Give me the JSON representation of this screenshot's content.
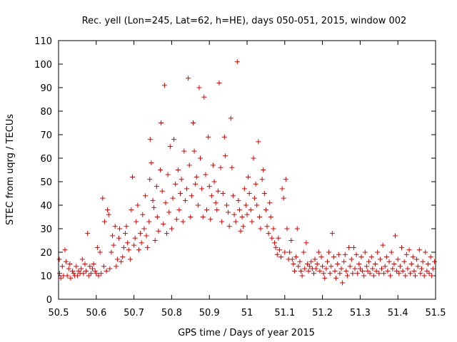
{
  "chart_data": {
    "type": "scatter",
    "title": "Rec. yell (Lon=245, Lat=62, h=HE), days 050-051, 2015, window 002",
    "xlabel": "GPS time / Days of year 2015",
    "ylabel": "STEC from uqrg / TECUs",
    "xlim": [
      50.5,
      51.5
    ],
    "ylim": [
      0,
      110
    ],
    "x_ticks": [
      "50.5",
      "50.6",
      "50.7",
      "50.8",
      "50.9",
      "51",
      "51.1",
      "51.2",
      "51.3",
      "51.4",
      "51.5"
    ],
    "y_ticks": [
      "0",
      "10",
      "20",
      "30",
      "40",
      "50",
      "60",
      "70",
      "80",
      "90",
      "100",
      "110"
    ],
    "marker": "plus",
    "grid": false,
    "legend": "none",
    "colors": {
      "series": "#dd0000",
      "axes": "#000000",
      "background": "#ffffff"
    },
    "series": [
      {
        "points": [
          [
            50.502,
            17
          ],
          [
            50.503,
            11
          ],
          [
            50.506,
            9
          ],
          [
            50.51,
            14
          ],
          [
            50.513,
            10
          ],
          [
            50.517,
            21
          ],
          [
            50.52,
            16
          ],
          [
            50.523,
            10
          ],
          [
            50.527,
            13
          ],
          [
            50.53,
            15
          ],
          [
            50.532,
            9
          ],
          [
            50.537,
            12
          ],
          [
            50.54,
            11
          ],
          [
            50.543,
            10
          ],
          [
            50.547,
            14
          ],
          [
            50.55,
            10
          ],
          [
            50.553,
            12
          ],
          [
            50.557,
            11
          ],
          [
            50.56,
            13
          ],
          [
            50.563,
            17
          ],
          [
            50.566,
            11
          ],
          [
            50.57,
            15
          ],
          [
            50.573,
            12
          ],
          [
            50.577,
            28
          ],
          [
            50.58,
            10
          ],
          [
            50.583,
            14
          ],
          [
            50.586,
            11
          ],
          [
            50.59,
            13
          ],
          [
            50.593,
            15
          ],
          [
            50.597,
            12
          ],
          [
            50.6,
            11
          ],
          [
            50.603,
            22
          ],
          [
            50.606,
            10
          ],
          [
            50.61,
            20
          ],
          [
            50.613,
            11
          ],
          [
            50.617,
            43
          ],
          [
            50.62,
            14
          ],
          [
            50.622,
            33
          ],
          [
            50.627,
            12
          ],
          [
            50.63,
            38
          ],
          [
            50.633,
            36
          ],
          [
            50.636,
            13
          ],
          [
            50.64,
            20
          ],
          [
            50.643,
            27
          ],
          [
            50.646,
            23
          ],
          [
            50.65,
            31
          ],
          [
            50.653,
            14
          ],
          [
            50.656,
            17
          ],
          [
            50.66,
            26
          ],
          [
            50.662,
            30
          ],
          [
            50.666,
            16
          ],
          [
            50.67,
            18
          ],
          [
            50.673,
            22
          ],
          [
            50.677,
            28
          ],
          [
            50.68,
            31
          ],
          [
            50.683,
            24
          ],
          [
            50.686,
            21
          ],
          [
            50.69,
            17
          ],
          [
            50.693,
            38
          ],
          [
            50.696,
            52
          ],
          [
            50.7,
            23
          ],
          [
            50.703,
            26
          ],
          [
            50.706,
            33
          ],
          [
            50.71,
            40
          ],
          [
            50.713,
            21
          ],
          [
            50.717,
            28
          ],
          [
            50.72,
            24
          ],
          [
            50.723,
            36
          ],
          [
            50.727,
            30
          ],
          [
            50.73,
            44
          ],
          [
            50.733,
            27
          ],
          [
            50.736,
            22
          ],
          [
            50.74,
            33
          ],
          [
            50.742,
            51
          ],
          [
            50.743,
            68
          ],
          [
            50.746,
            58
          ],
          [
            50.75,
            42
          ],
          [
            50.753,
            39
          ],
          [
            50.756,
            25
          ],
          [
            50.76,
            48
          ],
          [
            50.762,
            35
          ],
          [
            50.765,
            29
          ],
          [
            50.77,
            55
          ],
          [
            50.772,
            75
          ],
          [
            50.775,
            46
          ],
          [
            50.778,
            32
          ],
          [
            50.781,
            91
          ],
          [
            50.784,
            41
          ],
          [
            50.787,
            28
          ],
          [
            50.79,
            53
          ],
          [
            50.793,
            37
          ],
          [
            50.796,
            65
          ],
          [
            50.8,
            30
          ],
          [
            50.803,
            43
          ],
          [
            50.806,
            68
          ],
          [
            50.81,
            49
          ],
          [
            50.813,
            34
          ],
          [
            50.817,
            55
          ],
          [
            50.82,
            38
          ],
          [
            50.823,
            45
          ],
          [
            50.826,
            51
          ],
          [
            50.83,
            33
          ],
          [
            50.833,
            63
          ],
          [
            50.836,
            42
          ],
          [
            50.84,
            47
          ],
          [
            50.844,
            94
          ],
          [
            50.847,
            57
          ],
          [
            50.85,
            35
          ],
          [
            50.853,
            44
          ],
          [
            50.857,
            75
          ],
          [
            50.86,
            63
          ],
          [
            50.863,
            49
          ],
          [
            50.866,
            52
          ],
          [
            50.87,
            40
          ],
          [
            50.873,
            90
          ],
          [
            50.876,
            60
          ],
          [
            50.88,
            47
          ],
          [
            50.883,
            35
          ],
          [
            50.886,
            86
          ],
          [
            50.89,
            53
          ],
          [
            50.893,
            38
          ],
          [
            50.897,
            69
          ],
          [
            50.9,
            48
          ],
          [
            50.903,
            34
          ],
          [
            50.906,
            44
          ],
          [
            50.91,
            57
          ],
          [
            50.913,
            50
          ],
          [
            50.917,
            41
          ],
          [
            50.92,
            38
          ],
          [
            50.923,
            46
          ],
          [
            50.926,
            92
          ],
          [
            50.93,
            56
          ],
          [
            50.933,
            33
          ],
          [
            50.936,
            45
          ],
          [
            50.94,
            69
          ],
          [
            50.942,
            61
          ],
          [
            50.946,
            40
          ],
          [
            50.95,
            37
          ],
          [
            50.953,
            31
          ],
          [
            50.957,
            77
          ],
          [
            50.96,
            56
          ],
          [
            50.963,
            44
          ],
          [
            50.966,
            36
          ],
          [
            50.97,
            33
          ],
          [
            50.974,
            101
          ],
          [
            50.977,
            42
          ],
          [
            50.98,
            38
          ],
          [
            50.983,
            29
          ],
          [
            50.987,
            35
          ],
          [
            50.99,
            31
          ],
          [
            50.993,
            47
          ],
          [
            50.997,
            40
          ],
          [
            51.0,
            36
          ],
          [
            51.003,
            52
          ],
          [
            51.006,
            45
          ],
          [
            51.01,
            38
          ],
          [
            51.013,
            33
          ],
          [
            51.017,
            60
          ],
          [
            51.02,
            43
          ],
          [
            51.023,
            49
          ],
          [
            51.026,
            40
          ],
          [
            51.03,
            67
          ],
          [
            51.033,
            35
          ],
          [
            51.036,
            30
          ],
          [
            51.04,
            51
          ],
          [
            51.043,
            55
          ],
          [
            51.046,
            45
          ],
          [
            51.05,
            38
          ],
          [
            51.053,
            31
          ],
          [
            51.057,
            28
          ],
          [
            51.06,
            41
          ],
          [
            51.063,
            35
          ],
          [
            51.066,
            26
          ],
          [
            51.07,
            30
          ],
          [
            51.073,
            24
          ],
          [
            51.076,
            22
          ],
          [
            51.08,
            19
          ],
          [
            51.083,
            26
          ],
          [
            51.086,
            21
          ],
          [
            51.09,
            18
          ],
          [
            51.093,
            47
          ],
          [
            51.097,
            43
          ],
          [
            51.1,
            20
          ],
          [
            51.103,
            51
          ],
          [
            51.106,
            30
          ],
          [
            51.11,
            17
          ],
          [
            51.113,
            20
          ],
          [
            51.117,
            25
          ],
          [
            51.12,
            17
          ],
          [
            51.123,
            15
          ],
          [
            51.126,
            12
          ],
          [
            51.13,
            18
          ],
          [
            51.133,
            30
          ],
          [
            51.136,
            14
          ],
          [
            51.14,
            16
          ],
          [
            51.143,
            12
          ],
          [
            51.146,
            10
          ],
          [
            51.15,
            20
          ],
          [
            51.153,
            13
          ],
          [
            51.157,
            24
          ],
          [
            51.16,
            15
          ],
          [
            51.163,
            12
          ],
          [
            51.166,
            14
          ],
          [
            51.17,
            16
          ],
          [
            51.173,
            13
          ],
          [
            51.177,
            11
          ],
          [
            51.18,
            17
          ],
          [
            51.183,
            13
          ],
          [
            51.186,
            15
          ],
          [
            51.19,
            20
          ],
          [
            51.193,
            12
          ],
          [
            51.197,
            18
          ],
          [
            51.2,
            14
          ],
          [
            51.203,
            11
          ],
          [
            51.206,
            9
          ],
          [
            51.21,
            13
          ],
          [
            51.213,
            16
          ],
          [
            51.217,
            20
          ],
          [
            51.22,
            11
          ],
          [
            51.223,
            14
          ],
          [
            51.226,
            28
          ],
          [
            51.23,
            18
          ],
          [
            51.233,
            12
          ],
          [
            51.236,
            9
          ],
          [
            51.24,
            15
          ],
          [
            51.243,
            19
          ],
          [
            51.246,
            11
          ],
          [
            51.25,
            13
          ],
          [
            51.253,
            7
          ],
          [
            51.257,
            16
          ],
          [
            51.26,
            19
          ],
          [
            51.263,
            12
          ],
          [
            51.266,
            10
          ],
          [
            51.27,
            22
          ],
          [
            51.273,
            14
          ],
          [
            51.277,
            17
          ],
          [
            51.28,
            11
          ],
          [
            51.283,
            22
          ],
          [
            51.286,
            13
          ],
          [
            51.29,
            19
          ],
          [
            51.293,
            11
          ],
          [
            51.297,
            15
          ],
          [
            51.3,
            13
          ],
          [
            51.303,
            18
          ],
          [
            51.306,
            12
          ],
          [
            51.31,
            10
          ],
          [
            51.313,
            20
          ],
          [
            51.317,
            14
          ],
          [
            51.32,
            12
          ],
          [
            51.323,
            16
          ],
          [
            51.326,
            11
          ],
          [
            51.33,
            18
          ],
          [
            51.333,
            13
          ],
          [
            51.336,
            10
          ],
          [
            51.34,
            15
          ],
          [
            51.343,
            12
          ],
          [
            51.346,
            20
          ],
          [
            51.35,
            11
          ],
          [
            51.353,
            17
          ],
          [
            51.357,
            13
          ],
          [
            51.36,
            23
          ],
          [
            51.363,
            11
          ],
          [
            51.366,
            14
          ],
          [
            51.37,
            18
          ],
          [
            51.373,
            12
          ],
          [
            51.377,
            16
          ],
          [
            51.38,
            10
          ],
          [
            51.383,
            20
          ],
          [
            51.386,
            13
          ],
          [
            51.39,
            15
          ],
          [
            51.393,
            27
          ],
          [
            51.397,
            12
          ],
          [
            51.4,
            17
          ],
          [
            51.403,
            11
          ],
          [
            51.406,
            14
          ],
          [
            51.41,
            22
          ],
          [
            51.413,
            12
          ],
          [
            51.417,
            16
          ],
          [
            51.42,
            10
          ],
          [
            51.423,
            19
          ],
          [
            51.426,
            13
          ],
          [
            51.43,
            21
          ],
          [
            51.433,
            11
          ],
          [
            51.436,
            15
          ],
          [
            51.44,
            18
          ],
          [
            51.443,
            12
          ],
          [
            51.446,
            10
          ],
          [
            51.45,
            17
          ],
          [
            51.453,
            14
          ],
          [
            51.457,
            21
          ],
          [
            51.46,
            11
          ],
          [
            51.463,
            13
          ],
          [
            51.466,
            16
          ],
          [
            51.47,
            10
          ],
          [
            51.473,
            20
          ],
          [
            51.477,
            12
          ],
          [
            51.48,
            15
          ],
          [
            51.483,
            11
          ],
          [
            51.487,
            18
          ],
          [
            51.49,
            10
          ],
          [
            51.493,
            13
          ],
          [
            51.497,
            16
          ]
        ]
      }
    ]
  }
}
